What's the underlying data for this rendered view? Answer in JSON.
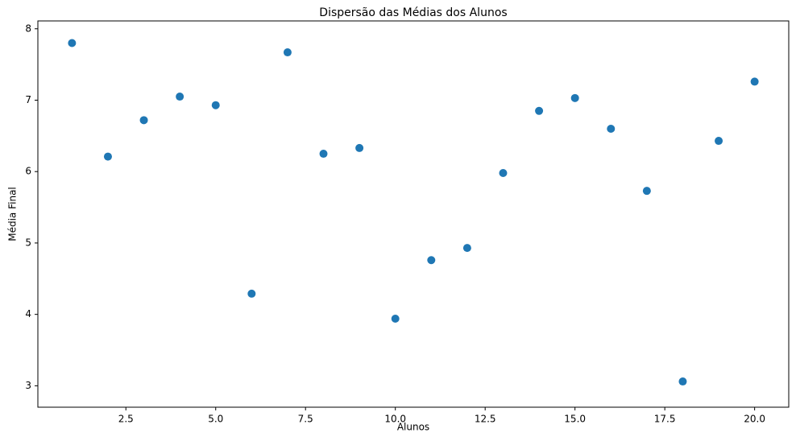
{
  "chart_data": {
    "type": "scatter",
    "title": "Dispersão das Médias dos Alunos",
    "x_label": "Alunos",
    "y_label": "Média Final",
    "color": "#1f77b4",
    "x": [
      1,
      2,
      3,
      4,
      5,
      6,
      7,
      8,
      9,
      10,
      11,
      12,
      13,
      14,
      15,
      16,
      17,
      18,
      19,
      20
    ],
    "values": [
      7.8,
      6.21,
      6.72,
      7.05,
      6.93,
      4.29,
      7.67,
      6.25,
      6.33,
      3.94,
      4.76,
      4.93,
      5.98,
      6.85,
      7.03,
      6.6,
      5.73,
      3.06,
      6.43,
      7.26
    ],
    "xlim": [
      0.05,
      20.95
    ],
    "xticks": [
      {
        "value": 2.5,
        "label": "2.5"
      },
      {
        "value": 5,
        "label": "5.0"
      },
      {
        "value": 7.5,
        "label": "7.5"
      },
      {
        "value": 10,
        "label": "10.0"
      },
      {
        "value": 12.5,
        "label": "12.5"
      },
      {
        "value": 15,
        "label": "15.0"
      },
      {
        "value": 17.5,
        "label": "17.5"
      },
      {
        "value": 20,
        "label": "20.0"
      }
    ],
    "ylim": [
      2.7,
      8.11
    ],
    "yticks": [
      3,
      4,
      5,
      6,
      7,
      8
    ],
    "grid": false
  }
}
